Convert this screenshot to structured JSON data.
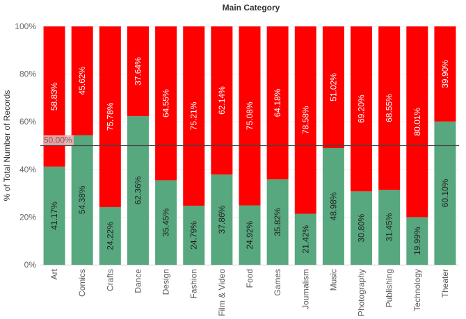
{
  "chart_data": {
    "type": "bar",
    "stacked": true,
    "title": "Main Category",
    "xlabel": "",
    "ylabel": "% of Total Number of Records",
    "ylim": [
      0,
      100
    ],
    "yticks": [
      "0%",
      "20%",
      "40%",
      "60%",
      "80%",
      "100%"
    ],
    "categories": [
      "Art",
      "Comics",
      "Crafts",
      "Dance",
      "Design",
      "Fashion",
      "Film & Video",
      "Food",
      "Games",
      "Journalism",
      "Music",
      "Photography",
      "Publishing",
      "Technology",
      "Theater"
    ],
    "series": [
      {
        "color": "#57a77f",
        "values": [
          41.17,
          54.38,
          24.22,
          62.36,
          35.45,
          24.79,
          37.86,
          24.92,
          35.82,
          21.42,
          48.98,
          30.8,
          31.45,
          19.99,
          60.1
        ],
        "labels": [
          "41.17%",
          "54.38%",
          "24.22%",
          "62.36%",
          "35.45%",
          "24.79%",
          "37.86%",
          "24.92%",
          "35.82%",
          "21.42%",
          "48.98%",
          "30.80%",
          "31.45%",
          "19.99%",
          "60.10%"
        ]
      },
      {
        "color": "#ff0000",
        "values": [
          58.83,
          45.62,
          75.78,
          37.64,
          64.55,
          75.21,
          62.14,
          75.08,
          64.18,
          78.58,
          51.02,
          69.2,
          68.55,
          80.01,
          39.9
        ],
        "labels": [
          "58.83%",
          "45.62%",
          "75.78%",
          "37.64%",
          "64.55%",
          "75.21%",
          "62.14%",
          "75.08%",
          "64.18%",
          "78.58%",
          "51.02%",
          "69.20%",
          "68.55%",
          "80.01%",
          "39.90%"
        ]
      }
    ],
    "reference_line": {
      "value": 50,
      "label": "50.00%"
    },
    "grid": true,
    "legend": "none"
  }
}
